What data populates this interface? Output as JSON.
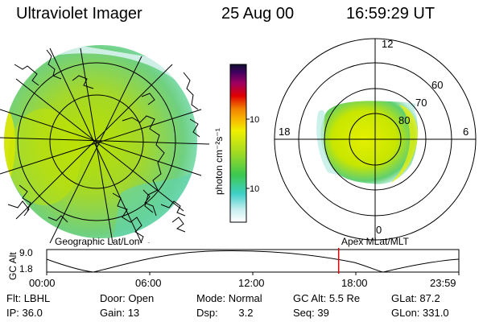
{
  "header": {
    "instrument": "Ultraviolet Imager",
    "date": "25 Aug 00",
    "time": "16:59:29 UT"
  },
  "colorbar": {
    "label": "photon cm⁻²s⁻¹",
    "ticks": [
      {
        "label": "100",
        "value": 100
      },
      {
        "label": "10",
        "value": 10
      }
    ]
  },
  "polar_plot": {
    "mlt_labels": {
      "top": "12",
      "left": "18",
      "right": "6",
      "bottom": "0"
    },
    "lat_labels": [
      "60",
      "70",
      "80"
    ]
  },
  "altitude_plot": {
    "label_left": "Geographic Lat/Lon",
    "label_right": "Apex MLat/MLT",
    "yaxis_title": "GC Alt",
    "ytick_top": "9.0",
    "ytick_bottom": "1.8",
    "xticks": [
      "00:00",
      "06:00",
      "12:00",
      "18:00",
      "23:59"
    ],
    "marker_time_hours": 17.0,
    "marker_color": "#e00000"
  },
  "status": {
    "row1": [
      {
        "key": "Flt:",
        "value": "LBHL"
      },
      {
        "key": "Door:",
        "value": "Open"
      },
      {
        "key": "Mode:",
        "value": "Normal"
      },
      {
        "key": "GC Alt:",
        "value": "5.5 Re"
      },
      {
        "key": "GLat:",
        "value": "87.2"
      }
    ],
    "row2": [
      {
        "key": "IP:",
        "value": "36.0"
      },
      {
        "key": "Gain:",
        "value": "13"
      },
      {
        "key": "Dsp:",
        "value": "3.2"
      },
      {
        "key": "Seq:",
        "value": "39"
      },
      {
        "key": "GLon:",
        "value": "331.0"
      }
    ]
  }
}
